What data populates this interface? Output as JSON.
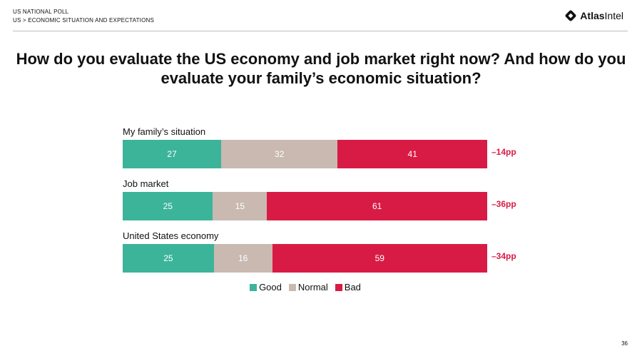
{
  "header": {
    "line1": "US NATIONAL POLL",
    "line2": "US > ECONOMIC SITUATION AND EXPECTATIONS"
  },
  "logo": {
    "bold": "Atlas",
    "regular": "Intel",
    "icon": "atlasintel-diamond-icon"
  },
  "page_number": "36",
  "colors": {
    "good": "#3bb49a",
    "normal": "#c9b9b1",
    "bad": "#d81b45",
    "diff": "#d81b45"
  },
  "chart_data": {
    "type": "bar",
    "orientation": "horizontal",
    "stacked": true,
    "title": "How do you evaluate the US economy and job market right now? And how do you evaluate your family’s economic situation?",
    "categories": [
      "My family’s situation",
      "Job market",
      "United States economy"
    ],
    "series": [
      {
        "name": "Good",
        "values": [
          27,
          25,
          25
        ]
      },
      {
        "name": "Normal",
        "values": [
          32,
          15,
          16
        ]
      },
      {
        "name": "Bad",
        "values": [
          41,
          61,
          59
        ]
      }
    ],
    "net_labels": [
      "–14pp",
      "–36pp",
      "–34pp"
    ],
    "xlim": [
      0,
      100
    ],
    "legend": "bottom"
  }
}
